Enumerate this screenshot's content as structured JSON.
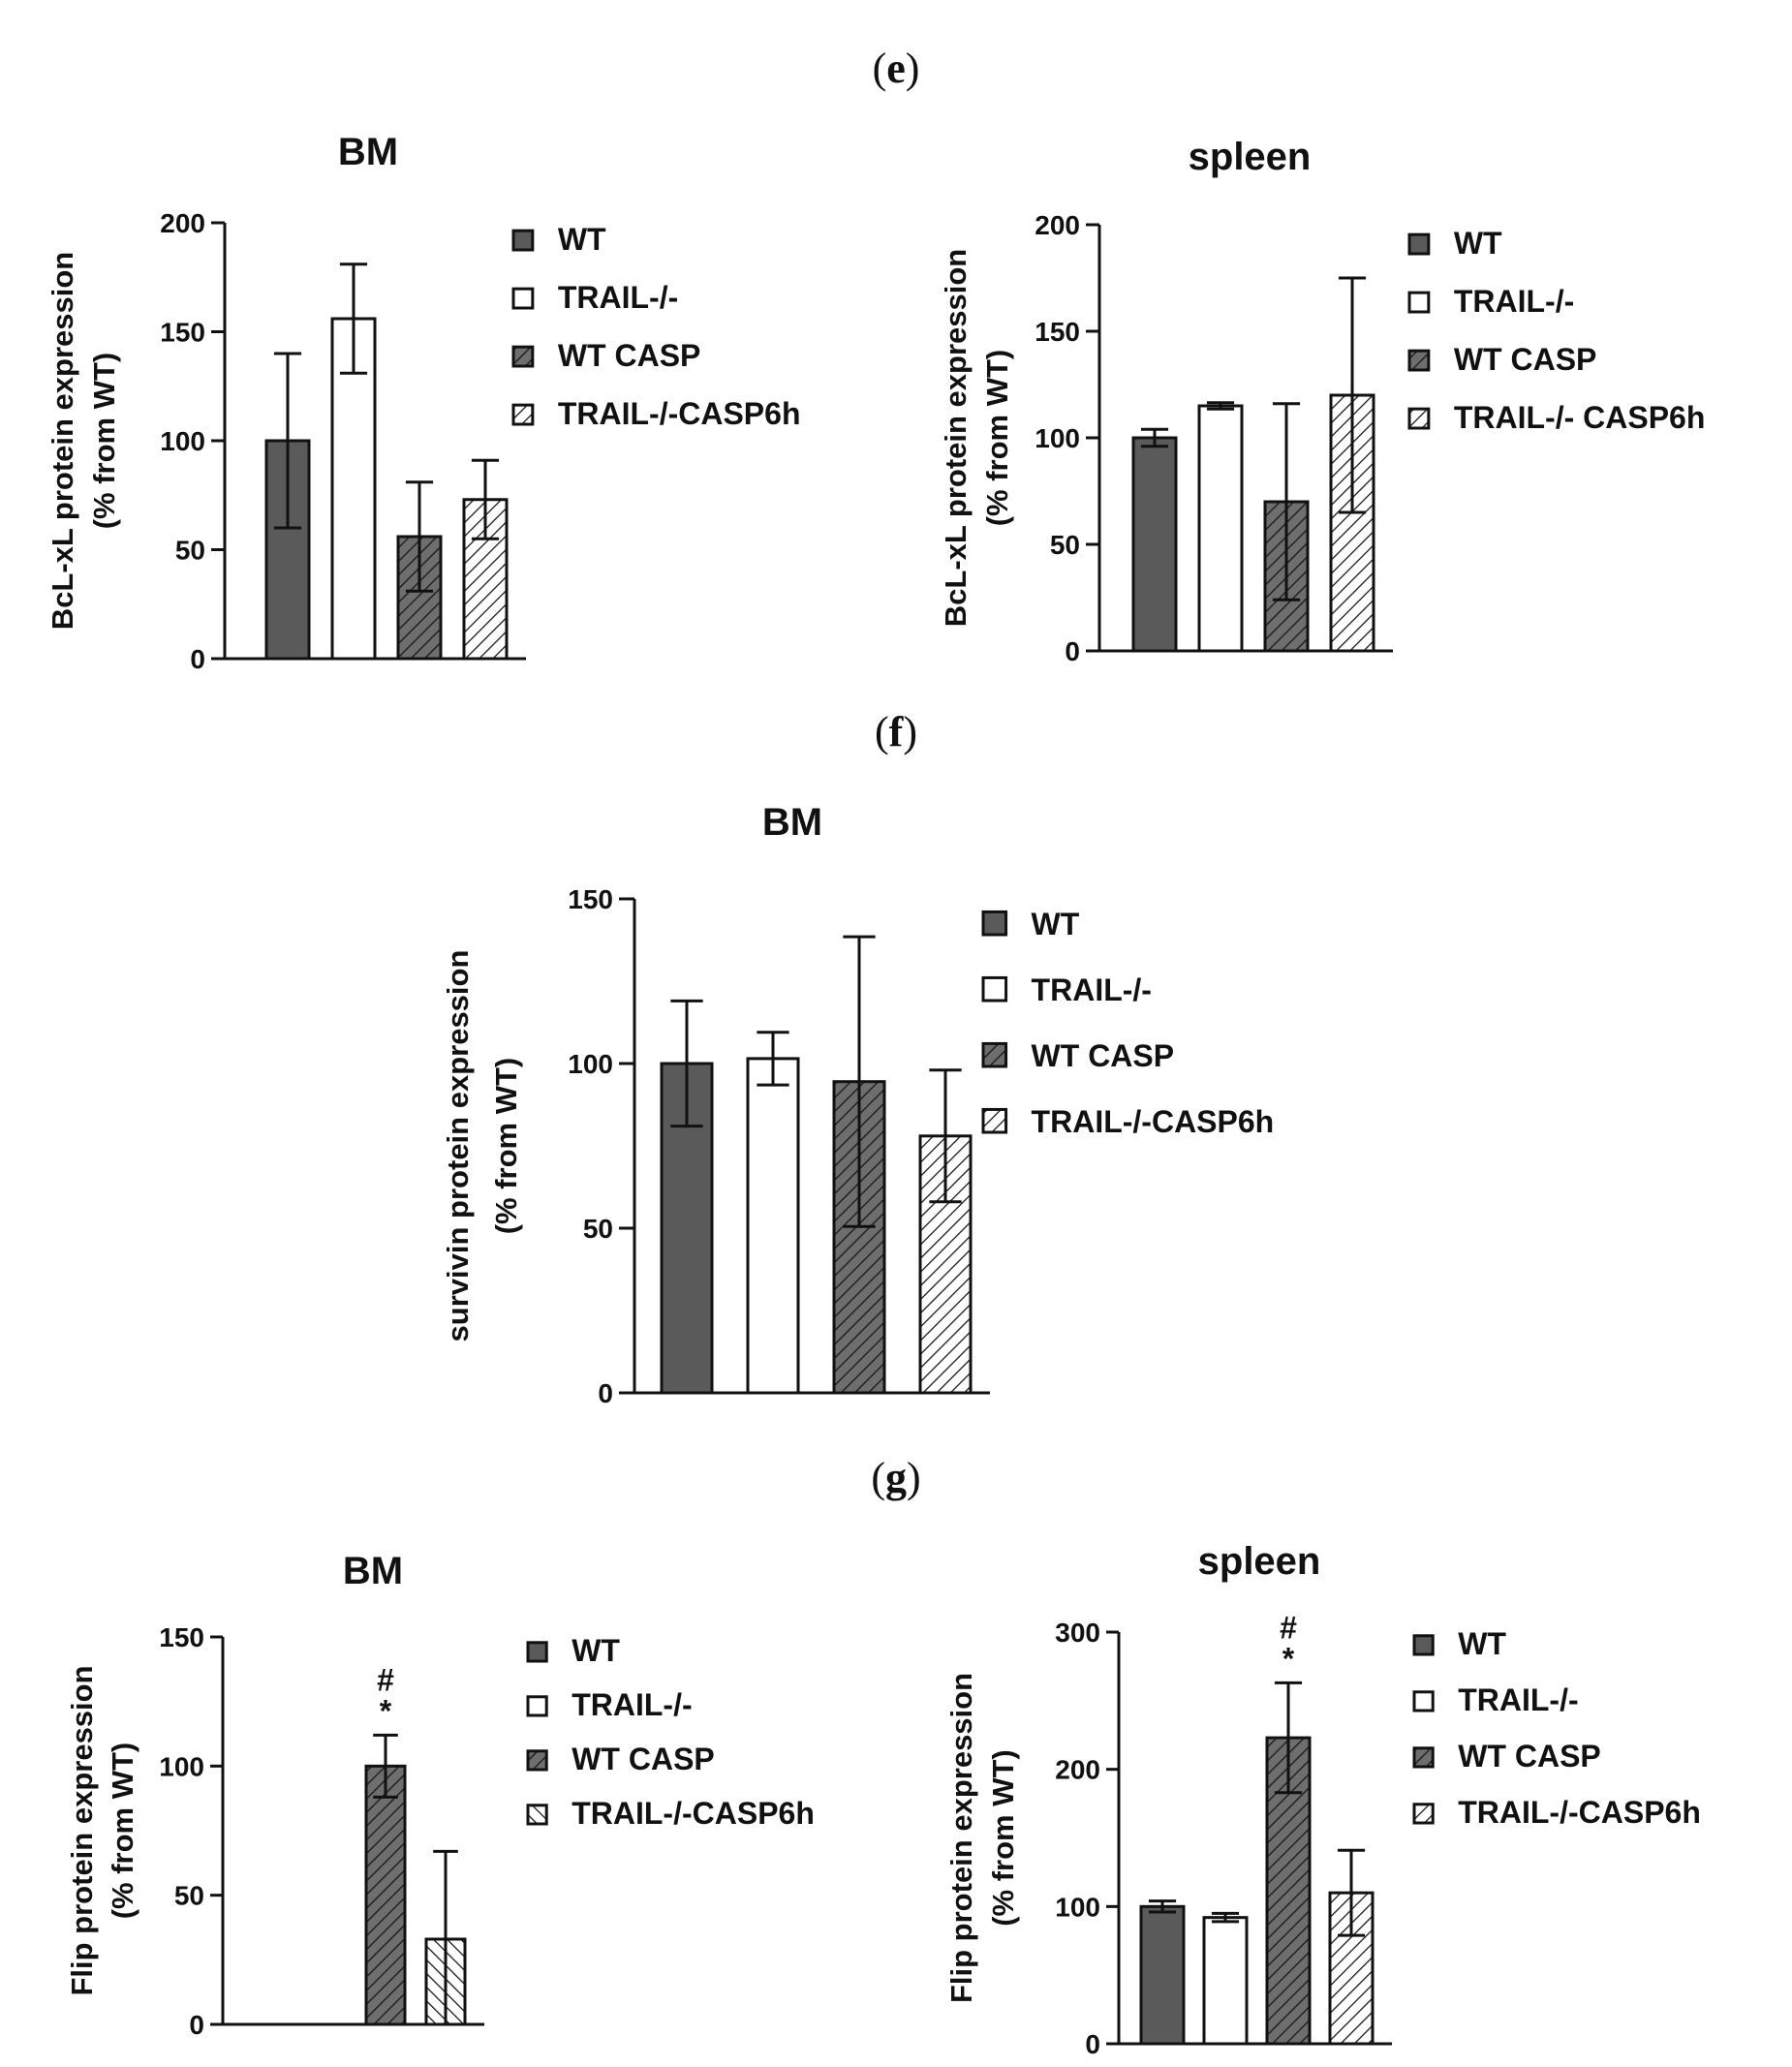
{
  "panels": [
    {
      "label": "(",
      "letter": "e",
      "close": ")"
    },
    {
      "label": "(",
      "letter": "f",
      "close": ")"
    },
    {
      "label": "(",
      "letter": "g",
      "close": ")"
    }
  ],
  "colors": {
    "wt": "#5a5a5a",
    "trail": "#ffffff",
    "wt_casp": "#6e6e6e",
    "trail_casp": "#ffffff",
    "ink": "#111111"
  },
  "chart_data": [
    {
      "id": "e-bm",
      "panel": "e",
      "type": "bar",
      "title": "BM",
      "ylabel_lines": [
        "BcL-xL protein expression",
        "(% from WT)"
      ],
      "ylim": [
        0,
        200
      ],
      "yticks": [
        0,
        50,
        100,
        150,
        200
      ],
      "categories": [
        "WT",
        "TRAIL-/-",
        "WT CASP",
        "TRAIL-/-CASP6h"
      ],
      "legend": [
        "WT",
        "TRAIL-/-",
        "WT CASP",
        "TRAIL-/-CASP6h"
      ],
      "values": [
        100,
        156,
        56,
        73
      ],
      "errors": [
        40,
        25,
        25,
        18
      ],
      "annotations": []
    },
    {
      "id": "e-spleen",
      "panel": "e",
      "type": "bar",
      "title": "spleen",
      "ylabel_lines": [
        "BcL-xL protein expression",
        "(% from  WT)"
      ],
      "ylim": [
        0,
        200
      ],
      "yticks": [
        0,
        50,
        100,
        150,
        200
      ],
      "categories": [
        "WT",
        "TRAIL-/-",
        "WT CASP",
        "TRAIL-/- CASP6h"
      ],
      "legend": [
        "WT",
        "TRAIL-/-",
        "WT CASP",
        "TRAIL-/- CASP6h"
      ],
      "values": [
        100,
        115,
        70,
        120
      ],
      "errors": [
        4,
        1.5,
        46,
        55
      ],
      "annotations": []
    },
    {
      "id": "f-bm",
      "panel": "f",
      "type": "bar",
      "title": "BM",
      "ylabel_lines": [
        "survivin protein expression",
        "(% from WT)"
      ],
      "ylim": [
        0,
        150
      ],
      "yticks": [
        0,
        50,
        100,
        150
      ],
      "categories": [
        "WT",
        "TRAIL-/-",
        "WT CASP",
        "TRAIL-/-CASP6h"
      ],
      "legend": [
        "WT",
        "TRAIL-/-",
        "WT CASP",
        "TRAIL-/-CASP6h"
      ],
      "values": [
        100,
        101.5,
        94.5,
        78
      ],
      "errors": [
        19,
        8,
        44,
        20
      ],
      "annotations": []
    },
    {
      "id": "g-bm",
      "panel": "g",
      "type": "bar",
      "title": "BM",
      "ylabel_lines": [
        "Flip protein expression",
        "(% from WT)"
      ],
      "ylim": [
        0,
        150
      ],
      "yticks": [
        0,
        50,
        100,
        150
      ],
      "categories": [
        "WT",
        "TRAIL-/-",
        "WT CASP",
        "TRAIL-/-CASP6h"
      ],
      "legend": [
        "WT",
        "TRAIL-/-",
        "WT CASP",
        "TRAIL-/-CASP6h"
      ],
      "values": [
        0,
        0,
        100,
        33
      ],
      "errors": [
        0,
        0,
        12,
        34
      ],
      "annotations": [
        {
          "category": "WT CASP",
          "lines": [
            "#",
            "*"
          ]
        }
      ]
    },
    {
      "id": "g-spleen",
      "panel": "g",
      "type": "bar",
      "title": "spleen",
      "ylabel_lines": [
        "Flip protein expression",
        "(% from WT)"
      ],
      "ylim": [
        0,
        300
      ],
      "yticks": [
        0,
        100,
        200,
        300
      ],
      "categories": [
        "WT",
        "TRAIL-/-",
        "WT CASP",
        "TRAIL-/-CASP6h"
      ],
      "legend": [
        "WT",
        "TRAIL-/-",
        "WT CASP",
        "TRAIL-/-CASP6h"
      ],
      "values": [
        100,
        92,
        223,
        110
      ],
      "errors": [
        4,
        3,
        40,
        31
      ],
      "annotations": [
        {
          "category": "WT CASP",
          "lines": [
            "#",
            "*"
          ]
        }
      ]
    }
  ]
}
